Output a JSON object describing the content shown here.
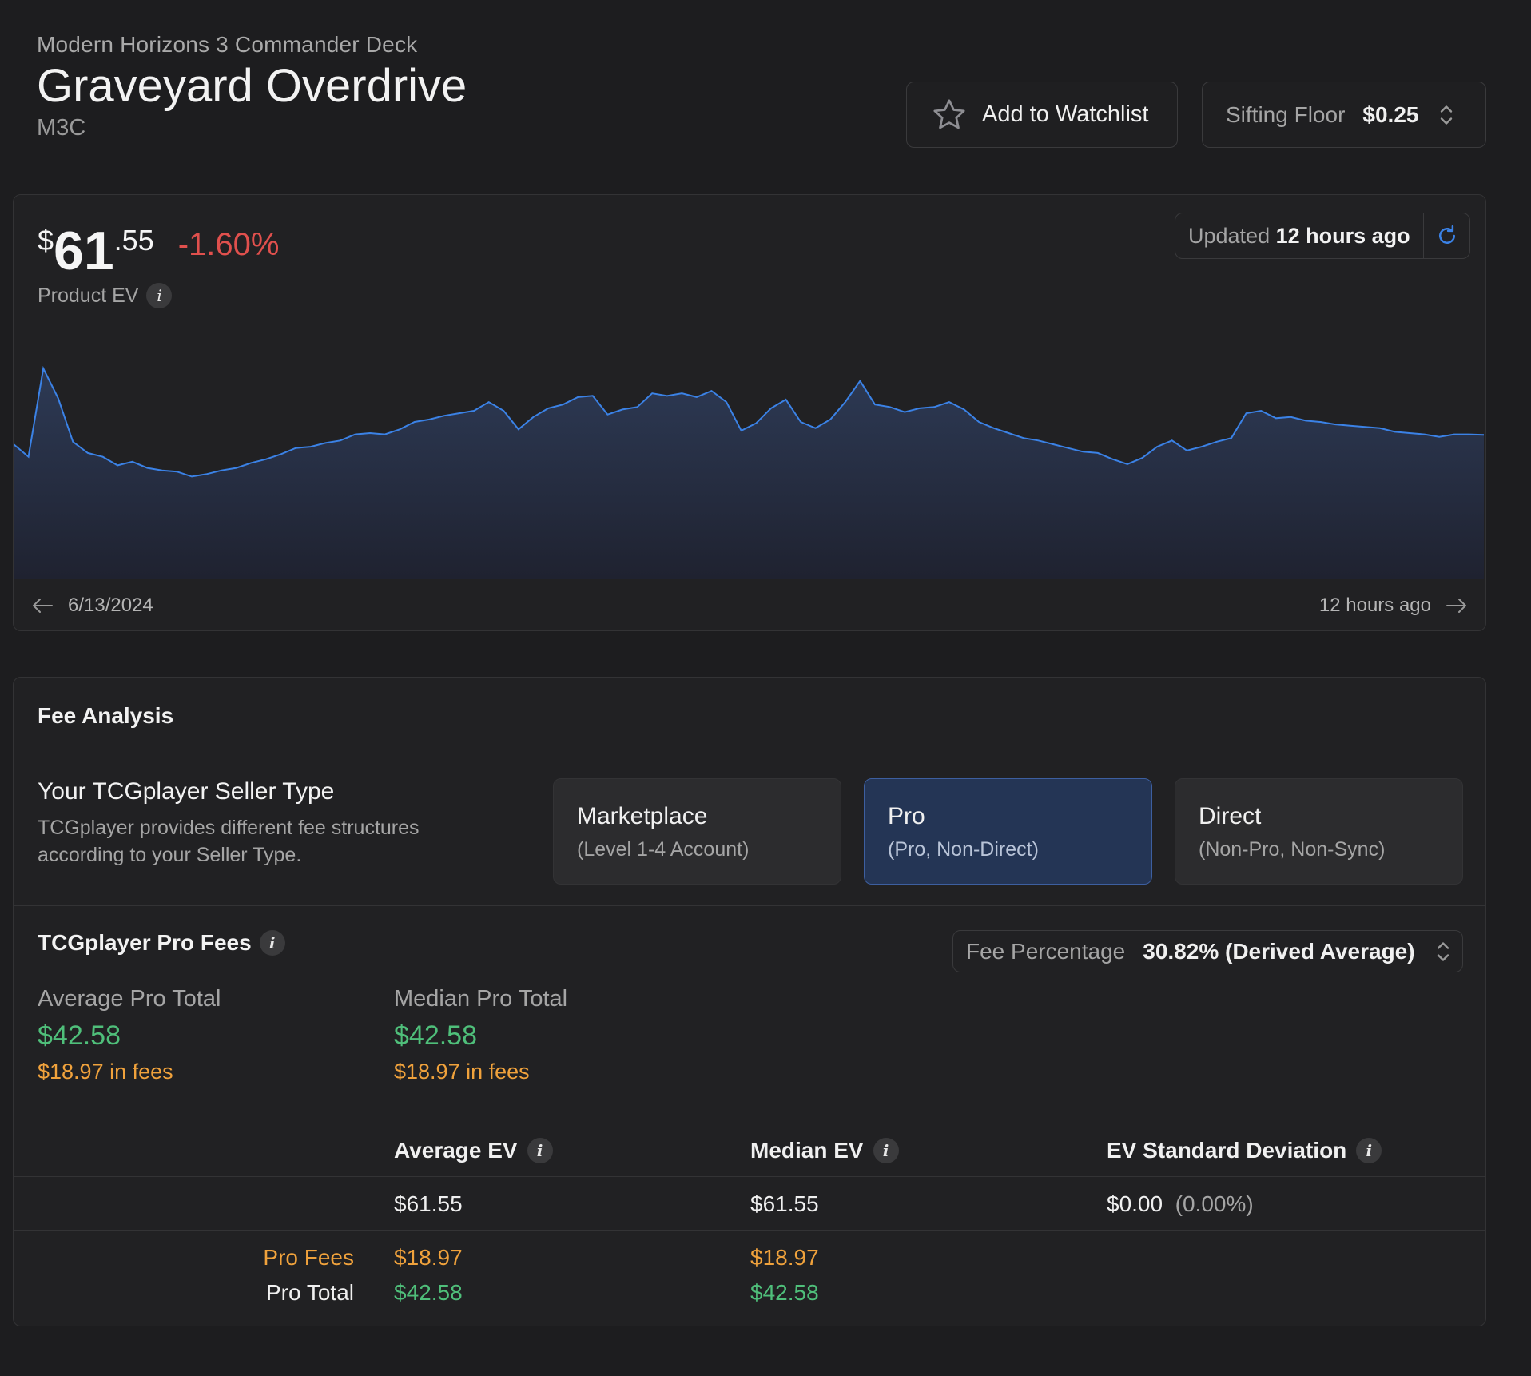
{
  "header": {
    "subtitle": "Modern Horizons 3 Commander Deck",
    "title": "Graveyard Overdrive",
    "set_code": "M3C",
    "watchlist_label": "Add to Watchlist",
    "sifting_floor_label": "Sifting Floor",
    "sifting_floor_value": "$0.25"
  },
  "price": {
    "dollar": "$",
    "whole": "61",
    "cents": ".55",
    "change": "-1.60%",
    "label": "Product EV",
    "updated_prefix": "Updated",
    "updated_value": "12 hours ago",
    "start_date": "6/13/2024",
    "end_label": "12 hours ago"
  },
  "chart_data": {
    "type": "area",
    "color": "#3b82e6",
    "values": [
      60.8,
      59.8,
      66.9,
      64.5,
      61.0,
      60.1,
      59.8,
      59.1,
      59.4,
      58.9,
      58.7,
      58.6,
      58.2,
      58.4,
      58.7,
      58.9,
      59.3,
      59.6,
      60.0,
      60.5,
      60.6,
      60.9,
      61.1,
      61.6,
      61.7,
      61.6,
      62.0,
      62.6,
      62.8,
      63.1,
      63.3,
      63.5,
      64.2,
      63.5,
      62.0,
      63.0,
      63.7,
      64.0,
      64.6,
      64.7,
      63.2,
      63.6,
      63.8,
      64.9,
      64.7,
      64.9,
      64.6,
      65.1,
      64.2,
      61.9,
      62.5,
      63.7,
      64.4,
      62.6,
      62.1,
      62.8,
      64.2,
      65.9,
      64.0,
      63.8,
      63.4,
      63.7,
      63.8,
      64.2,
      63.6,
      62.6,
      62.1,
      61.7,
      61.3,
      61.1,
      60.8,
      60.5,
      60.2,
      60.1,
      59.6,
      59.2,
      59.7,
      60.6,
      61.1,
      60.3,
      60.6,
      61.0,
      61.3,
      63.3,
      63.5,
      62.9,
      63.0,
      62.7,
      62.6,
      62.4,
      62.3,
      62.2,
      62.1,
      61.8,
      61.7,
      61.6,
      61.4,
      61.6,
      61.6,
      61.55
    ],
    "fill_top": "#2d3a55",
    "fill_bottom": "#1f2230"
  },
  "fee_analysis": {
    "title": "Fee Analysis",
    "seller_title": "Your TCGplayer Seller Type",
    "seller_desc": "TCGplayer provides different fee structures according to your Seller Type.",
    "options": [
      {
        "name": "Marketplace",
        "detail": "(Level 1-4 Account)"
      },
      {
        "name": "Pro",
        "detail": "(Pro, Non-Direct)"
      },
      {
        "name": "Direct",
        "detail": "(Non-Pro, Non-Sync)"
      }
    ],
    "pro_fees_title": "TCGplayer Pro Fees",
    "fee_pct_label": "Fee Percentage",
    "fee_pct_value": "30.82% (Derived Average)",
    "avg_total_label": "Average Pro Total",
    "avg_total_value": "$42.58",
    "avg_fees": "$18.97 in fees",
    "med_total_label": "Median Pro Total",
    "med_total_value": "$42.58",
    "med_fees": "$18.97 in fees"
  },
  "table": {
    "headers": [
      "Average EV",
      "Median EV",
      "EV Standard Deviation"
    ],
    "avg_ev": "$61.55",
    "med_ev": "$61.55",
    "std_ev": "$0.00",
    "std_pct": "(0.00%)",
    "pro_fees_label": "Pro Fees",
    "pro_total_label": "Pro Total",
    "avg_pro_fees": "$18.97",
    "med_pro_fees": "$18.97",
    "avg_pro_total": "$42.58",
    "med_pro_total": "$42.58"
  }
}
